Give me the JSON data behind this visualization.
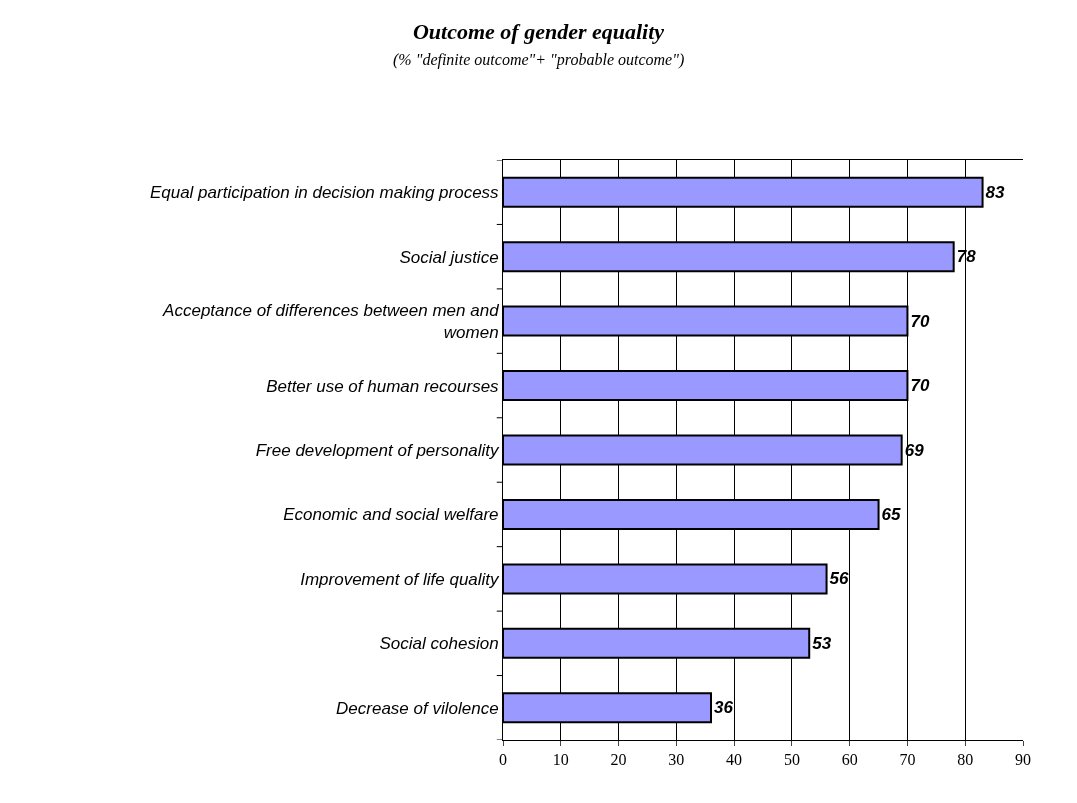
{
  "chart_data": {
    "type": "bar",
    "orientation": "horizontal",
    "title": "Outcome of gender equality",
    "subtitle": "(% \"definite outcome\"+ \"probable outcome\")",
    "categories": [
      "Equal participation in decision making process",
      "Social justice",
      "Acceptance of differences between men and women",
      "Better use of human recourses",
      "Free development of personality",
      "Economic and social welfare",
      "Improvement of life quality",
      "Social cohesion",
      "Decrease of vilolence"
    ],
    "values": [
      83,
      78,
      70,
      70,
      69,
      65,
      56,
      53,
      36
    ],
    "color": "#9999ff",
    "xlim": [
      0,
      90
    ],
    "xticks": [
      0,
      10,
      20,
      30,
      40,
      50,
      60,
      70,
      80,
      90
    ],
    "grid": "x",
    "data_labels": true
  }
}
